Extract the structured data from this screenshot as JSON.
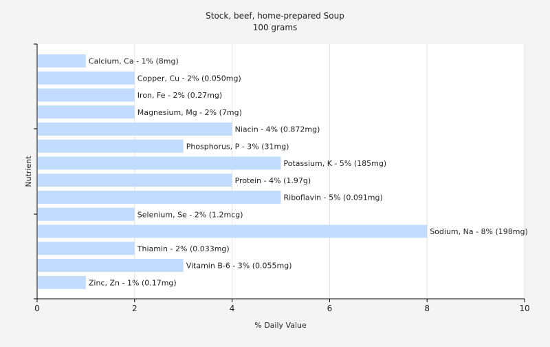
{
  "chart_data": {
    "type": "bar",
    "orientation": "horizontal",
    "title": "Stock, beef, home-prepared Soup",
    "subtitle": "100 grams",
    "xlabel": "% Daily Value",
    "ylabel": "Nutrient",
    "xlim": [
      0,
      10
    ],
    "xticks": [
      0,
      2,
      4,
      6,
      8,
      10
    ],
    "grid": true,
    "bar_color": "#c2dcff",
    "categories": [
      "Calcium, Ca",
      "Copper, Cu",
      "Iron, Fe",
      "Magnesium, Mg",
      "Niacin",
      "Phosphorus, P",
      "Potassium, K",
      "Protein",
      "Riboflavin",
      "Selenium, Se",
      "Sodium, Na",
      "Thiamin",
      "Vitamin B-6",
      "Zinc, Zn"
    ],
    "values": [
      1,
      2,
      2,
      2,
      4,
      3,
      5,
      4,
      5,
      2,
      8,
      2,
      3,
      1
    ],
    "labels": [
      "Calcium, Ca - 1% (8mg)",
      "Copper, Cu - 2% (0.050mg)",
      "Iron, Fe - 2% (0.27mg)",
      "Magnesium, Mg - 2% (7mg)",
      "Niacin - 4% (0.872mg)",
      "Phosphorus, P - 3% (31mg)",
      "Potassium, K - 5% (185mg)",
      "Protein - 4% (1.97g)",
      "Riboflavin - 5% (0.091mg)",
      "Selenium, Se - 2% (1.2mcg)",
      "Sodium, Na - 8% (198mg)",
      "Thiamin - 2% (0.033mg)",
      "Vitamin B-6 - 3% (0.055mg)",
      "Zinc, Zn - 1% (0.17mg)"
    ]
  }
}
